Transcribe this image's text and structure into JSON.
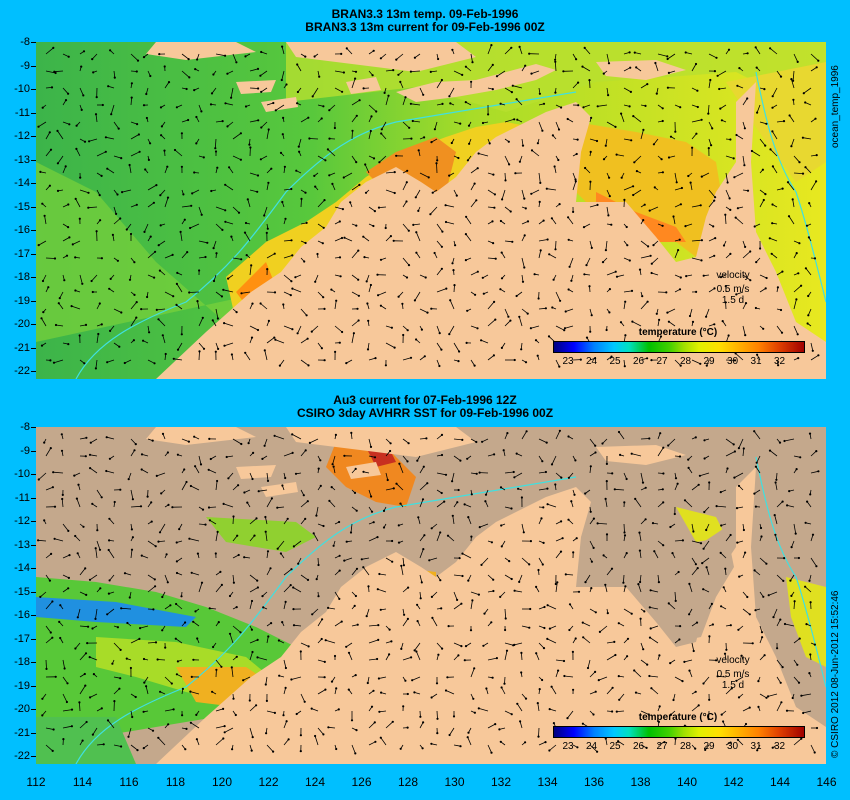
{
  "top_panel": {
    "title_line1": "BRAN3.3 13m temp. 09-Feb-1996",
    "title_line2": "BRAN3.3 13m current for 09-Feb-1996 00Z",
    "side_label": "ocean_temp_1996",
    "velocity_label": "velocity",
    "velocity_scale": "0.5 m/s",
    "velocity_time": "1.5 d",
    "colorbar_title": "temperature (°C)"
  },
  "bottom_panel": {
    "title_line1": "Au3 current for 07-Feb-1996 12Z",
    "title_line2": "CSIRO 3day AVHRR SST for 09-Feb-1996 00Z",
    "side_label": "© CSIRO 2012  08-Jun-2012 15:52:46",
    "velocity_label": "velocity",
    "velocity_scale": "0.5 m/s",
    "velocity_time": "1.5 d",
    "colorbar_title": "temperature (°C)"
  },
  "colorbar_ticks": [
    "23",
    "24",
    "25",
    "26",
    "27",
    "28",
    "29",
    "30",
    "31",
    "32"
  ],
  "y_ticks": [
    "-8",
    "-9",
    "-10",
    "-11",
    "-12",
    "-13",
    "-14",
    "-15",
    "-16",
    "-17",
    "-18",
    "-19",
    "-20",
    "-21",
    "-22"
  ],
  "x_ticks": [
    "112",
    "114",
    "116",
    "118",
    "120",
    "122",
    "124",
    "126",
    "128",
    "130",
    "132",
    "134",
    "136",
    "138",
    "140",
    "142",
    "144",
    "146"
  ],
  "colors": {
    "background": "#00bfff",
    "land": "#f7c89a",
    "missing_sst": "#c4a88c",
    "warm": "#ff8c00",
    "cool": "#3cb83c"
  }
}
